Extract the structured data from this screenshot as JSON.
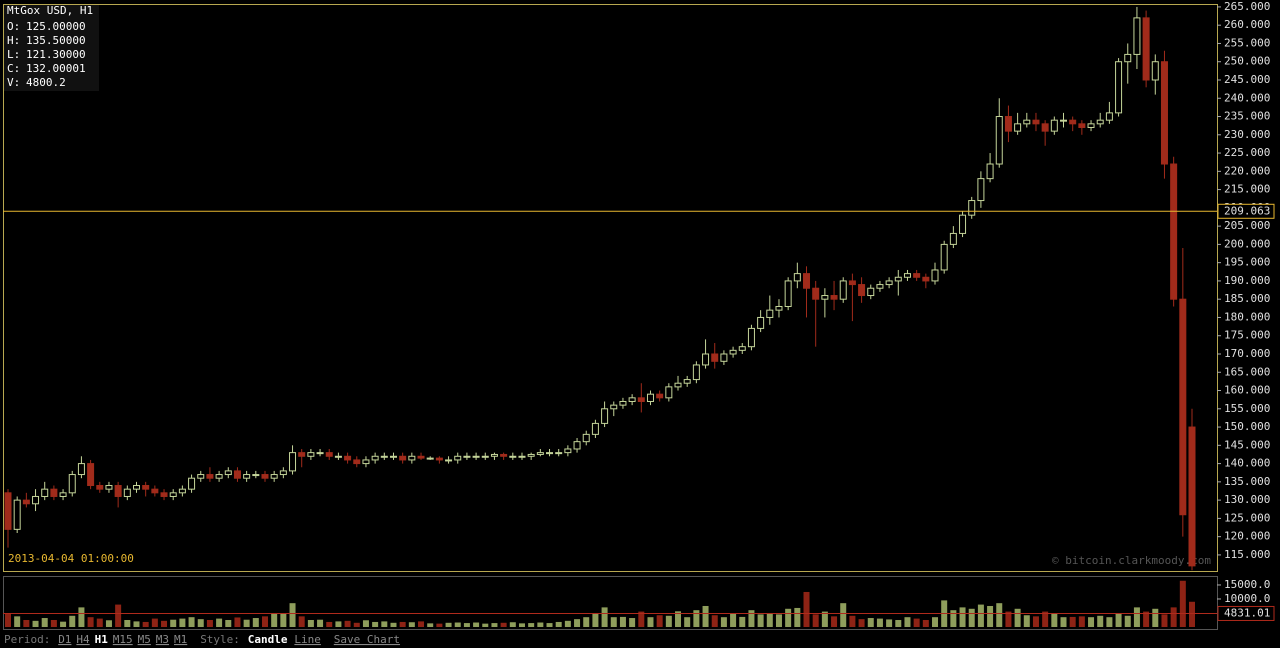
{
  "chart_data": {
    "type": "candlestick",
    "title": "MtGox USD, H1",
    "info": [
      {
        "label": "O:",
        "value": "125.00000"
      },
      {
        "label": "H:",
        "value": "135.50000"
      },
      {
        "label": "L:",
        "value": "121.30000"
      },
      {
        "label": "C:",
        "value": "132.00001"
      },
      {
        "label": "V:",
        "value": "4800.2"
      }
    ],
    "date_label": "2013-04-04 01:00:00",
    "watermark": "© bitcoin.clarkmoody.com",
    "bull_color": "#c5d59a",
    "bear_color": "#a12b1b",
    "open": [
      132,
      122,
      130,
      129,
      131,
      133,
      131,
      132,
      137,
      140,
      134,
      133,
      134,
      131,
      133,
      134,
      133,
      132,
      131,
      132,
      133,
      136,
      137,
      136,
      137,
      138,
      136,
      137,
      137,
      136,
      137,
      138,
      143,
      142,
      143,
      143,
      142,
      142,
      141,
      140,
      141,
      142,
      142,
      142,
      141,
      142,
      141.5,
      141.5,
      141,
      141,
      142,
      142,
      142,
      142,
      142.5,
      142,
      142,
      142,
      142.5,
      143,
      143,
      143,
      144,
      146,
      148,
      151,
      155,
      156,
      157,
      158,
      157,
      159,
      158,
      161,
      162,
      163,
      167,
      170,
      168,
      170,
      171,
      172,
      177,
      180,
      182,
      183,
      190,
      192,
      188,
      185,
      186,
      185,
      190,
      189,
      186,
      188,
      189,
      190,
      191,
      192,
      191,
      190,
      193,
      200,
      203,
      208,
      212,
      218,
      222,
      235,
      231,
      233,
      234,
      233,
      231,
      234,
      234,
      233,
      232,
      233,
      234,
      236,
      250,
      252,
      262,
      245,
      250,
      222,
      185,
      150
    ],
    "high": [
      133,
      131,
      132,
      133,
      135,
      134,
      133,
      138,
      142,
      141,
      135,
      135,
      135,
      134,
      135,
      135,
      134,
      133,
      133,
      134,
      137,
      138,
      139,
      138,
      139,
      139,
      138,
      138,
      138,
      138,
      139,
      145,
      144,
      144,
      144,
      144,
      143,
      143,
      142,
      142,
      143,
      143,
      143,
      143,
      143,
      143,
      142,
      142,
      142,
      143,
      143,
      143,
      143,
      143,
      143,
      143,
      143,
      143,
      144,
      144,
      144,
      145,
      147,
      149,
      152,
      157,
      157,
      158,
      159,
      162,
      160,
      160,
      162,
      164,
      164,
      168,
      174,
      173,
      171,
      172,
      173,
      178,
      182,
      186,
      185,
      191,
      195,
      194,
      190,
      188,
      190,
      191,
      192,
      191,
      189,
      190,
      191,
      193,
      193,
      193,
      192,
      195,
      201,
      205,
      209,
      213,
      220,
      225,
      240,
      238,
      236,
      236,
      236,
      234,
      235,
      236,
      235,
      234,
      234,
      236,
      239,
      251,
      255,
      265,
      264,
      252,
      253,
      224,
      199,
      155
    ],
    "low": [
      117,
      121,
      128,
      127,
      130,
      130,
      130,
      131,
      136,
      133,
      132,
      132,
      128,
      130,
      132,
      131,
      131,
      130,
      130,
      131,
      132,
      135,
      135,
      135,
      136,
      135,
      135,
      136,
      135,
      135,
      136,
      137,
      139,
      141,
      142,
      141,
      141,
      140,
      139,
      139,
      140,
      141,
      141,
      140,
      140,
      141,
      141,
      140,
      140,
      140,
      141,
      141,
      141,
      141,
      141,
      141,
      141,
      141,
      142,
      142,
      142,
      142,
      143,
      145,
      147,
      150,
      153,
      155,
      156,
      154,
      156,
      157,
      157,
      160,
      161,
      162,
      166,
      166,
      167,
      169,
      170,
      171,
      176,
      178,
      180,
      182,
      188,
      180,
      172,
      180,
      182,
      184,
      179,
      184,
      185,
      187,
      188,
      186,
      190,
      190,
      188,
      189,
      192,
      199,
      202,
      207,
      210,
      217,
      221,
      228,
      230,
      232,
      231,
      227,
      230,
      232,
      231,
      230,
      231,
      232,
      233,
      235,
      244,
      248,
      243,
      241,
      218,
      183,
      120,
      110.8
    ],
    "close": [
      122,
      130,
      129,
      131,
      133,
      131,
      132,
      137,
      140,
      134,
      133,
      134,
      131,
      133,
      134,
      133,
      132,
      131,
      132,
      133,
      136,
      137,
      136,
      137,
      138,
      136,
      137,
      137,
      136,
      137,
      138,
      143,
      142,
      143,
      143,
      142,
      142,
      141,
      140,
      141,
      142,
      142,
      142,
      141,
      142,
      141.5,
      141.5,
      141,
      141,
      142,
      142,
      142,
      142,
      142.5,
      142,
      142,
      142,
      142.5,
      143,
      143,
      143,
      144,
      146,
      148,
      151,
      155,
      156,
      157,
      158,
      157,
      159,
      158,
      161,
      162,
      163,
      167,
      170,
      168,
      170,
      171,
      172,
      177,
      180,
      182,
      183,
      190,
      192,
      188,
      185,
      186,
      185,
      190,
      189,
      186,
      188,
      189,
      190,
      191,
      192,
      191,
      190,
      193,
      200,
      203,
      208,
      212,
      218,
      222,
      235,
      231,
      233,
      234,
      233,
      231,
      234,
      234,
      233,
      232,
      233,
      234,
      236,
      250,
      252,
      262,
      245,
      250,
      222,
      185,
      126,
      112
    ],
    "volume": [
      4800,
      3800,
      2500,
      2200,
      3200,
      2500,
      1900,
      4000,
      7000,
      3500,
      3000,
      2400,
      8000,
      2500,
      2000,
      1800,
      3000,
      2200,
      2600,
      3000,
      3500,
      2800,
      2500,
      3000,
      2500,
      3400,
      2600,
      3200,
      3800,
      5000,
      4800,
      8500,
      3800,
      2500,
      2600,
      1800,
      2000,
      2200,
      1500,
      2400,
      1800,
      2000,
      1500,
      1800,
      1700,
      2000,
      1300,
      1200,
      1500,
      1600,
      1400,
      1600,
      1200,
      1400,
      1500,
      1700,
      1300,
      1400,
      1600,
      1400,
      1800,
      2200,
      2800,
      3500,
      5000,
      7000,
      3500,
      3600,
      3200,
      5500,
      3500,
      4200,
      4000,
      5600,
      3500,
      6000,
      7500,
      4200,
      3500,
      4800,
      3600,
      6000,
      4500,
      5000,
      4500,
      6500,
      6800,
      12500,
      4500,
      5500,
      3800,
      8500,
      4000,
      2800,
      3200,
      3000,
      2700,
      2500,
      3500,
      3000,
      2500,
      3500,
      9500,
      6000,
      7000,
      6500,
      8000,
      7500,
      8500,
      5500,
      6500,
      4200,
      3800,
      5500,
      4800,
      3500,
      3600,
      3800,
      3500,
      4000,
      3500,
      5000,
      4000,
      7000,
      5500,
      6500,
      4500,
      7000,
      16500,
      9000
    ],
    "ylim": [
      110.6,
      265.8
    ],
    "yticks": [
      {
        "value": 115,
        "label": "115.000"
      },
      {
        "value": 120,
        "label": "120.000"
      },
      {
        "value": 125,
        "label": "125.000"
      },
      {
        "value": 130,
        "label": "130.000"
      },
      {
        "value": 135,
        "label": "135.000"
      },
      {
        "value": 140,
        "label": "140.000"
      },
      {
        "value": 145,
        "label": "145.000"
      },
      {
        "value": 150,
        "label": "150.000"
      },
      {
        "value": 155,
        "label": "155.000"
      },
      {
        "value": 160,
        "label": "160.000"
      },
      {
        "value": 165,
        "label": "165.000"
      },
      {
        "value": 170,
        "label": "170.000"
      },
      {
        "value": 175,
        "label": "175.000"
      },
      {
        "value": 180,
        "label": "180.000"
      },
      {
        "value": 185,
        "label": "185.000"
      },
      {
        "value": 190,
        "label": "190.000"
      },
      {
        "value": 195,
        "label": "195.000"
      },
      {
        "value": 200,
        "label": "200.000"
      },
      {
        "value": 205,
        "label": "205.000"
      },
      {
        "value": 210,
        "label": "210.000"
      },
      {
        "value": 215,
        "label": "215.000"
      },
      {
        "value": 220,
        "label": "220.000"
      },
      {
        "value": 225,
        "label": "225.000"
      },
      {
        "value": 230,
        "label": "230.000"
      },
      {
        "value": 235,
        "label": "235.000"
      },
      {
        "value": 240,
        "label": "240.000"
      },
      {
        "value": 245,
        "label": "245.000"
      },
      {
        "value": 250,
        "label": "250.000"
      },
      {
        "value": 255,
        "label": "255.000"
      },
      {
        "value": 260,
        "label": "260.000"
      },
      {
        "value": 265,
        "label": "265.000"
      }
    ],
    "price_line": 209.063,
    "price_line_color": "#e8b830",
    "volume_ylim": [
      0,
      18200
    ],
    "volume_yticks": [
      {
        "value": 10000,
        "label": "10000.0"
      },
      {
        "value": 15000,
        "label": "15000.0"
      }
    ],
    "volume_marker": 4831.01,
    "volume_marker_color": "#b02a1c"
  },
  "toolbar": {
    "period_label": "Period:",
    "periods": [
      "D1",
      "H4",
      "H1",
      "M15",
      "M5",
      "M3",
      "M1"
    ],
    "selected_period": "H1",
    "style_label": "Style:",
    "styles": [
      "Candle",
      "Line"
    ],
    "selected_style": "Candle",
    "save": "Save Chart"
  }
}
